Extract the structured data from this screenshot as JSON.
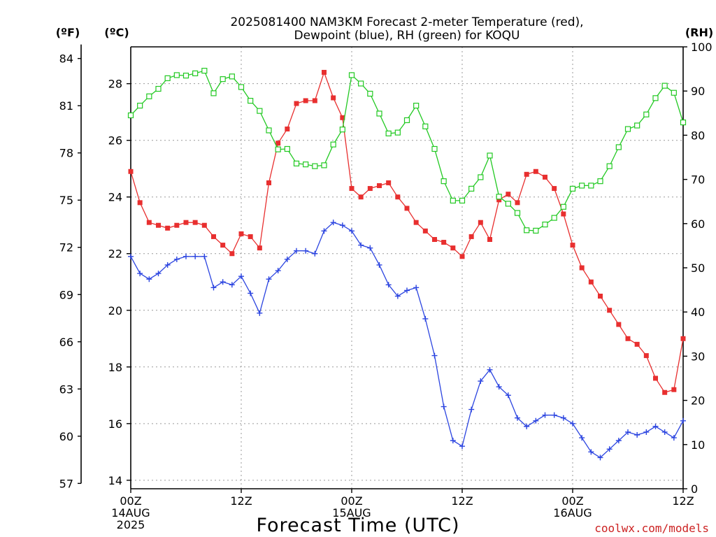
{
  "chart_data": {
    "type": "line",
    "title_line1": "2025081400 NAM3KM Forecast 2-meter Temperature (red),",
    "title_line2": "Dewpoint (blue), RH (green) for KOQU",
    "unit_left_f": "(ºF)",
    "unit_left_c": "(ºC)",
    "unit_right": "(RH)",
    "xlabel": "Forecast Time (UTC)",
    "credit": "coolwx.com/models",
    "x_hours": [
      0,
      1,
      2,
      3,
      4,
      5,
      6,
      7,
      8,
      9,
      10,
      11,
      12,
      13,
      14,
      15,
      16,
      17,
      18,
      19,
      20,
      21,
      22,
      23,
      24,
      25,
      26,
      27,
      28,
      29,
      30,
      31,
      32,
      33,
      34,
      35,
      36,
      37,
      38,
      39,
      40,
      41,
      42,
      43,
      44,
      45,
      46,
      47,
      48,
      49,
      50,
      51,
      52,
      53,
      54,
      55,
      56,
      57,
      58,
      59,
      60
    ],
    "xlim": [
      0,
      60
    ],
    "x_ticks": [
      {
        "hour": 0,
        "lines": [
          "00Z",
          "14AUG",
          "2025"
        ]
      },
      {
        "hour": 12,
        "lines": [
          "12Z"
        ]
      },
      {
        "hour": 24,
        "lines": [
          "00Z",
          "15AUG"
        ]
      },
      {
        "hour": 36,
        "lines": [
          "12Z"
        ]
      },
      {
        "hour": 48,
        "lines": [
          "00Z",
          "16AUG"
        ]
      },
      {
        "hour": 60,
        "lines": [
          "12Z"
        ]
      }
    ],
    "c_ticks": [
      14,
      16,
      18,
      20,
      22,
      24,
      26,
      28
    ],
    "c_lim": [
      13.7,
      29.3
    ],
    "f_ticks": [
      57,
      60,
      63,
      66,
      69,
      72,
      75,
      78,
      81,
      84
    ],
    "rh_ticks": [
      0,
      10,
      20,
      30,
      40,
      50,
      60,
      70,
      80,
      90,
      100
    ],
    "rh_lim": [
      0,
      100
    ],
    "colors": {
      "temperature": "#e82f2f",
      "dewpoint": "#2b44e0",
      "rh": "#22c922",
      "grid": "#9a9a9a",
      "axis": "#000000"
    },
    "grid": true,
    "series": [
      {
        "key": "temperature",
        "unit": "C",
        "marker": "filled-square",
        "values": [
          24.9,
          23.8,
          23.1,
          23.0,
          22.9,
          23.0,
          23.1,
          23.1,
          23.0,
          22.6,
          22.3,
          22.0,
          22.7,
          22.6,
          22.2,
          24.5,
          25.9,
          26.4,
          27.3,
          27.4,
          27.4,
          28.4,
          27.5,
          26.8,
          24.3,
          24.0,
          24.3,
          24.4,
          24.5,
          24.0,
          23.6,
          23.1,
          22.8,
          22.5,
          22.4,
          22.2,
          21.9,
          22.6,
          23.1,
          22.5,
          23.9,
          24.1,
          23.8,
          24.8,
          24.9,
          24.7,
          24.3,
          23.4,
          22.3,
          21.5,
          21.0,
          20.5,
          20.0,
          19.5,
          19.0,
          18.8,
          18.4,
          17.6,
          17.1,
          17.2,
          19.0
        ]
      },
      {
        "key": "dewpoint",
        "unit": "C",
        "marker": "plus",
        "values": [
          21.9,
          21.3,
          21.1,
          21.3,
          21.6,
          21.8,
          21.9,
          21.9,
          21.9,
          20.8,
          21.0,
          20.9,
          21.2,
          20.6,
          19.9,
          21.1,
          21.4,
          21.8,
          22.1,
          22.1,
          22.0,
          22.8,
          23.1,
          23.0,
          22.8,
          22.3,
          22.2,
          21.6,
          20.9,
          20.5,
          20.7,
          20.8,
          19.7,
          18.4,
          16.6,
          15.4,
          15.2,
          16.5,
          17.5,
          17.9,
          17.3,
          17.0,
          16.2,
          15.9,
          16.1,
          16.3,
          16.3,
          16.2,
          16.0,
          15.5,
          15.0,
          14.8,
          15.1,
          15.4,
          15.7,
          15.6,
          15.7,
          15.9,
          15.7,
          15.5,
          16.1
        ]
      },
      {
        "key": "rh",
        "unit": "%",
        "marker": "open-square",
        "values": [
          84.5,
          86.7,
          88.8,
          90.5,
          92.9,
          93.6,
          93.5,
          94.0,
          94.6,
          89.5,
          92.7,
          93.3,
          90.9,
          87.8,
          85.5,
          81.1,
          76.8,
          76.9,
          73.6,
          73.4,
          73.0,
          73.2,
          77.9,
          81.3,
          93.6,
          91.7,
          89.4,
          84.9,
          80.4,
          80.6,
          83.4,
          86.7,
          82.0,
          76.9,
          69.6,
          65.2,
          65.2,
          67.9,
          70.5,
          75.4,
          66.1,
          64.5,
          62.4,
          58.5,
          58.4,
          59.8,
          61.3,
          63.8,
          67.9,
          68.6,
          68.6,
          69.6,
          73.0,
          77.3,
          81.4,
          82.2,
          84.7,
          88.4,
          91.2,
          89.6,
          82.9
        ]
      }
    ]
  }
}
